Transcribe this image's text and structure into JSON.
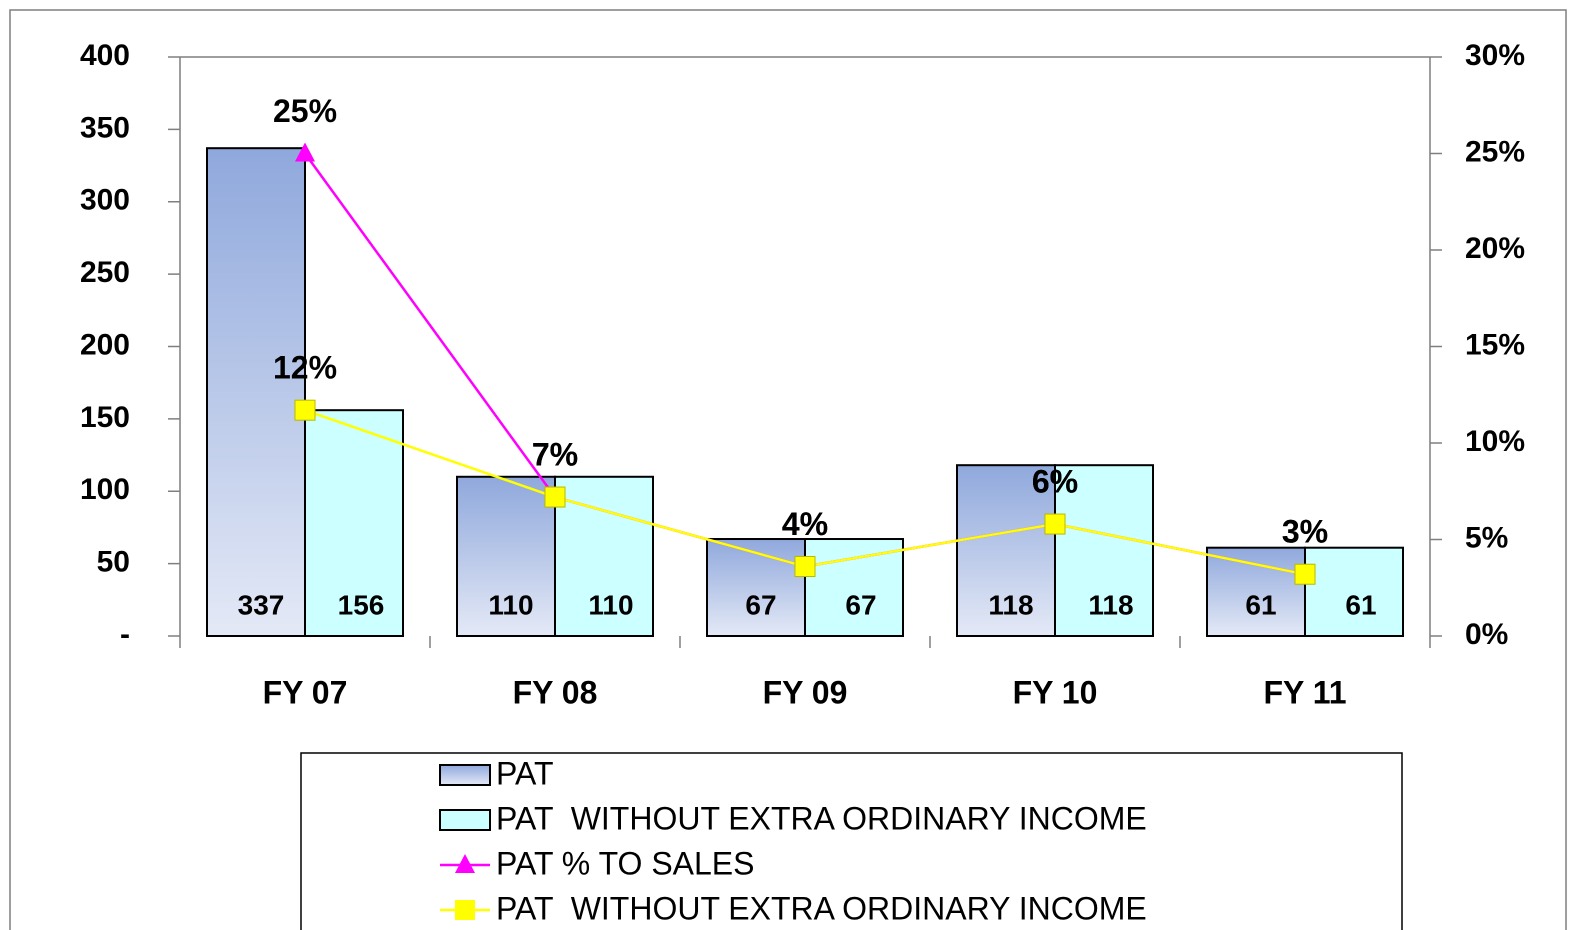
{
  "chart_data": {
    "type": "bar",
    "categories": [
      "FY 07",
      "FY 08",
      "FY 09",
      "FY 10",
      "FY 11"
    ],
    "series": [
      {
        "name": "PAT",
        "type": "bar",
        "color": "#8fa8dc",
        "values": [
          337,
          110,
          67,
          118,
          61
        ]
      },
      {
        "name": "PAT  WITHOUT EXTRA ORDINARY INCOME",
        "type": "bar",
        "color": "#ccffff",
        "values": [
          156,
          110,
          67,
          118,
          61
        ]
      },
      {
        "name": "PAT % TO SALES",
        "type": "line",
        "axis": "y2",
        "marker": "triangle",
        "color": "#ff00ff",
        "values": [
          25,
          7.2,
          3.6,
          5.8,
          3.2
        ],
        "value_labels": [
          "25%",
          "7%",
          "4%",
          "6%",
          "3%"
        ]
      },
      {
        "name": "PAT  WITHOUT EXTRA ORDINARY INCOME",
        "type": "line",
        "axis": "y2",
        "marker": "square",
        "color": "#ffff00",
        "values": [
          11.7,
          7.2,
          3.6,
          5.8,
          3.2
        ],
        "value_labels": [
          "12%",
          "7%",
          "4%",
          "6%",
          "3%"
        ]
      }
    ],
    "ylim": [
      0,
      400
    ],
    "yticks": [
      {
        "value": 0,
        "label": "-"
      },
      50,
      100,
      150,
      200,
      250,
      300,
      350,
      400
    ],
    "y2lim": [
      0,
      30
    ],
    "y2ticks": [
      {
        "value": 0,
        "label": "0%"
      },
      {
        "value": 5,
        "label": "5%"
      },
      {
        "value": 10,
        "label": "10%"
      },
      {
        "value": 15,
        "label": "15%"
      },
      {
        "value": 20,
        "label": "20%"
      },
      {
        "value": 25,
        "label": "25%"
      },
      {
        "value": 30,
        "label": "30%"
      }
    ],
    "grid": false,
    "legend": "bottom"
  }
}
